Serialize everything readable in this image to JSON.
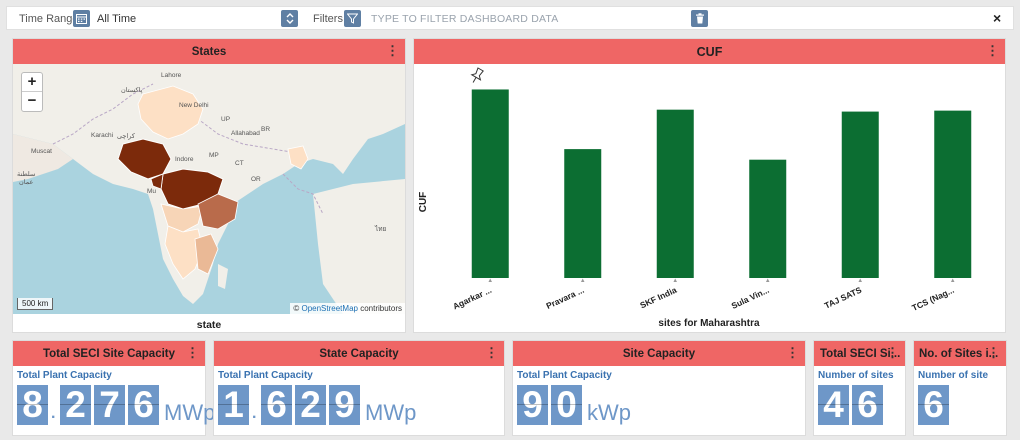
{
  "filterbar": {
    "time_range_label": "Time Range:",
    "time_range_value": "All Time",
    "filters_label": "Filters:",
    "filter_placeholder": "TYPE TO FILTER DASHBOARD DATA",
    "close_glyph": "×"
  },
  "states_panel": {
    "title": "States",
    "caption": "state",
    "zoom_in": "+",
    "zoom_out": "−",
    "scale": "500 km",
    "attribution_prefix": "©",
    "attribution_link": "OpenStreetMap",
    "attribution_suffix": "contributors",
    "map_labels": [
      "Lahore",
      "پاکستان",
      "New Delhi",
      "UP",
      "Karachi",
      "کراچی",
      "Allahabad",
      "BR",
      "Indore",
      "Muscat",
      "MP",
      "OR",
      "CT",
      "Mu",
      "سلطنة",
      "عمان",
      "ไทย"
    ]
  },
  "cuf_panel": {
    "title": "CUF",
    "chart_data": {
      "type": "bar",
      "title": "CUF",
      "xlabel": "sites for Maharashtra",
      "ylabel": "CUF",
      "categories": [
        "Agarkar ...",
        "Pravara ...",
        "SKF India",
        "Sula Vin...",
        "TAJ SATS",
        "TCS (Nag..."
      ],
      "values": [
        19.6,
        13.4,
        17.5,
        12.3,
        17.3,
        17.4
      ],
      "ylim": [
        0,
        21
      ],
      "grid": false,
      "bar_color": "#0c6e32"
    }
  },
  "tiles": [
    {
      "title": "Total SECI Site Capacity",
      "subtitle": "Total Plant Capacity",
      "digits": [
        "8",
        ".",
        "2",
        "7",
        "6"
      ],
      "unit": "MWp"
    },
    {
      "title": "State Capacity",
      "subtitle": "Total Plant Capacity",
      "digits": [
        "1",
        ".",
        "6",
        "2",
        "9"
      ],
      "unit": "MWp"
    },
    {
      "title": "Site Capacity",
      "subtitle": "Total Plant Capacity",
      "digits": [
        "9",
        "0"
      ],
      "unit": "kWp"
    },
    {
      "title": "Total SECI Si...",
      "subtitle": "Number of sites",
      "digits": [
        "4",
        "6"
      ],
      "unit": ""
    },
    {
      "title": "No. of Sites i...",
      "subtitle": "Number of site",
      "digits": [
        "6"
      ],
      "unit": ""
    }
  ],
  "menu_glyph": "⋮",
  "colors": {
    "header": "#ef6665",
    "digit_bg": "#6e97c8",
    "icon_bg": "#5f7fa3",
    "bar": "#0c6e32"
  }
}
